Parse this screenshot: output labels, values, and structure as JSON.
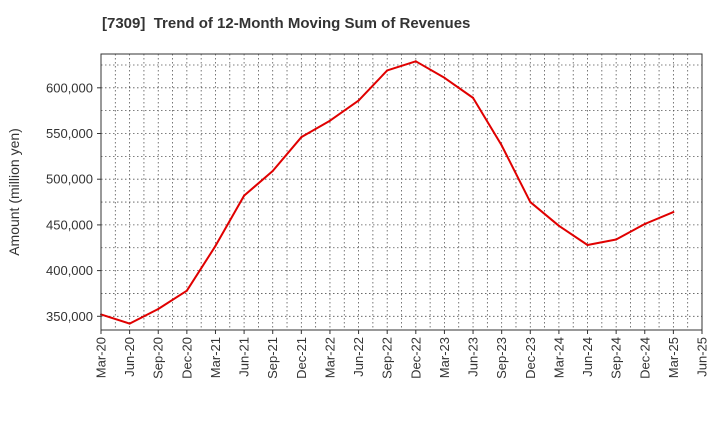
{
  "chart_data": {
    "type": "line",
    "title": "[7309]  Trend of 12-Month Moving Sum of Revenues",
    "ylabel": "Amount (million yen)",
    "xlabel": "",
    "x_ticks": [
      "Mar-20",
      "Jun-20",
      "Sep-20",
      "Dec-20",
      "Mar-21",
      "Jun-21",
      "Sep-21",
      "Dec-21",
      "Mar-22",
      "Jun-22",
      "Sep-22",
      "Dec-22",
      "Mar-23",
      "Jun-23",
      "Sep-23",
      "Dec-23",
      "Mar-24",
      "Jun-24",
      "Sep-24",
      "Dec-24",
      "Mar-25",
      "Jun-25"
    ],
    "y_ticks": [
      "350,000",
      "400,000",
      "450,000",
      "500,000",
      "550,000",
      "600,000"
    ],
    "ylim": [
      335000,
      637000
    ],
    "grid": true,
    "colors": {
      "line": "#e00000",
      "grid": "#555555",
      "axis": "#333333"
    },
    "series": [
      {
        "x": [
          "Mar-20",
          "Jun-20",
          "Sep-20",
          "Dec-20",
          "Mar-21",
          "Jun-21",
          "Sep-21",
          "Dec-21",
          "Mar-22",
          "Jun-22",
          "Sep-22",
          "Dec-22",
          "Mar-23",
          "Jun-23",
          "Sep-23",
          "Dec-23",
          "Mar-24",
          "Jun-24",
          "Sep-24",
          "Dec-24",
          "Mar-25"
        ],
        "values": [
          352000,
          342000,
          358000,
          378000,
          427000,
          482000,
          509000,
          546000,
          564000,
          586000,
          619000,
          629000,
          611000,
          589000,
          537000,
          475000,
          449000,
          428000,
          434000,
          451000,
          464000
        ]
      }
    ]
  }
}
